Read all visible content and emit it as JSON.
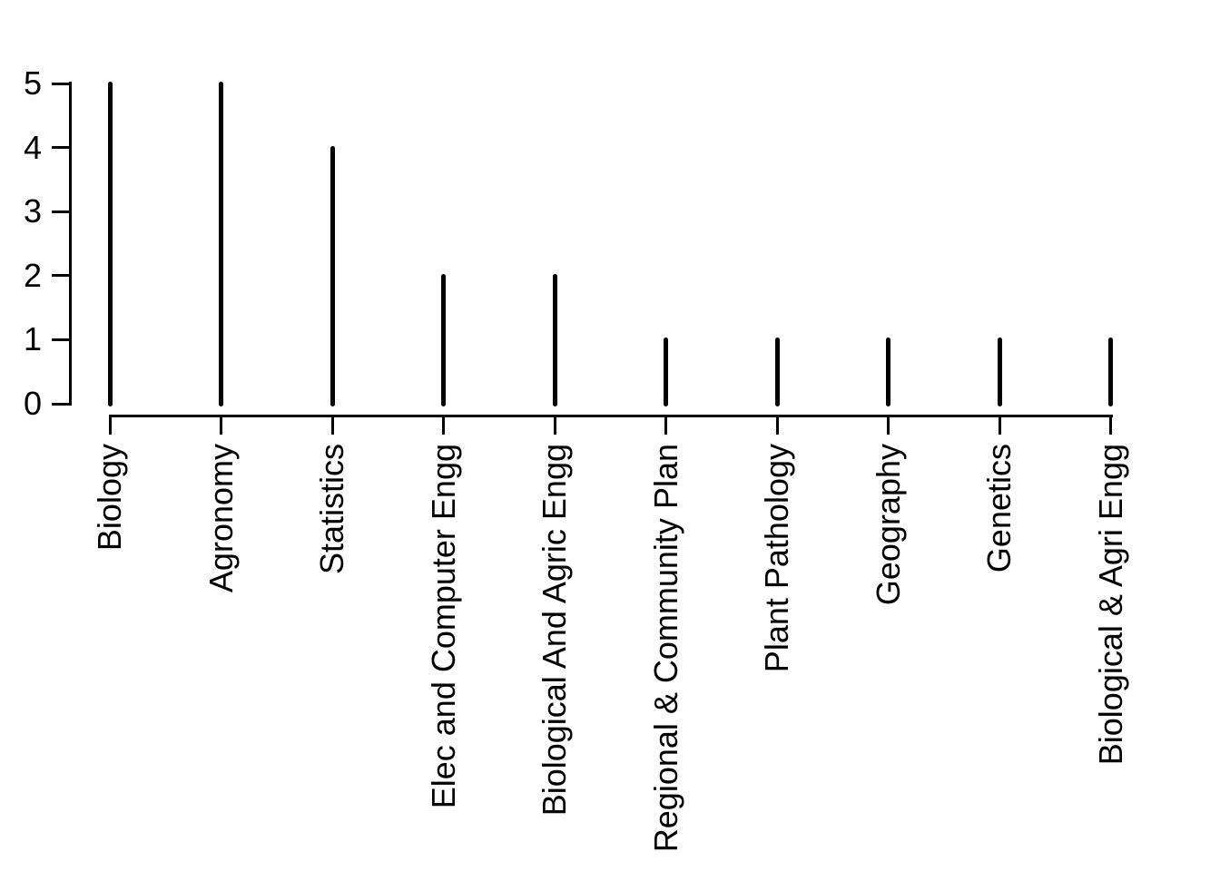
{
  "chart_data": {
    "type": "bar",
    "variant": "spike",
    "title": "",
    "xlabel": "",
    "ylabel": "",
    "categories": [
      "Biology",
      "Agronomy",
      "Statistics",
      "Elec and Computer Engg",
      "Biological And Agric Engg",
      "Regional & Community Plan",
      "Plant Pathology",
      "Geography",
      "Genetics",
      "Biological & Agri Engg"
    ],
    "values": [
      5,
      5,
      4,
      2,
      2,
      1,
      1,
      1,
      1,
      1
    ],
    "ylim": [
      0,
      5
    ],
    "yticks": [
      "0",
      "1",
      "2",
      "3",
      "4",
      "5"
    ],
    "x_label_rotation": 90,
    "grid": false,
    "legend": null,
    "colors": {
      "spike": "#000000",
      "axis": "#000000",
      "text": "#000000",
      "background": "#ffffff"
    }
  }
}
